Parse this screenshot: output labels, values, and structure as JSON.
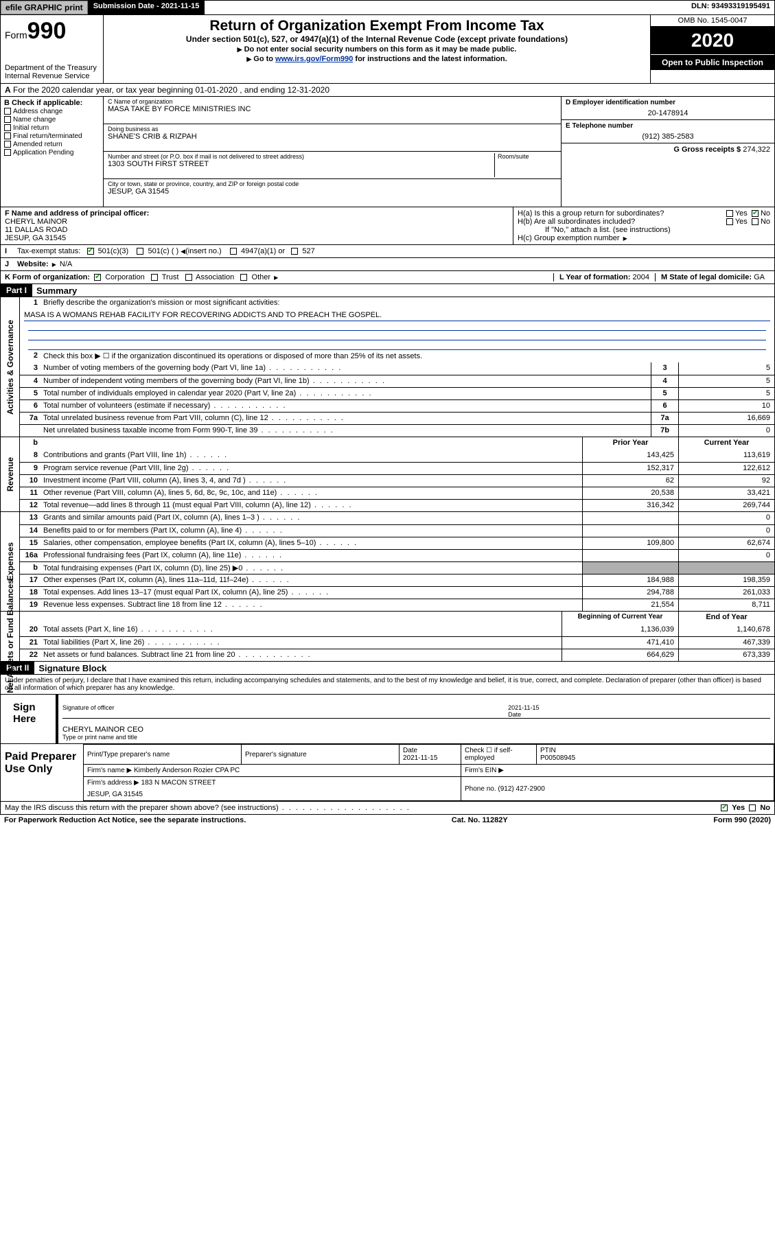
{
  "topbar": {
    "efile": "efile GRAPHIC print",
    "sub_lbl": "Submission Date - 2021-11-15",
    "dln": "DLN: 93493319195491"
  },
  "header": {
    "form_word": "Form",
    "form_no": "990",
    "dept": "Department of the Treasury",
    "irs": "Internal Revenue Service",
    "title": "Return of Organization Exempt From Income Tax",
    "subtitle": "Under section 501(c), 527, or 4947(a)(1) of the Internal Revenue Code (except private foundations)",
    "instr1": "Do not enter social security numbers on this form as it may be made public.",
    "instr2_a": "Go to ",
    "instr2_link": "www.irs.gov/Form990",
    "instr2_b": " for instructions and the latest information.",
    "omb": "OMB No. 1545-0047",
    "year": "2020",
    "open": "Open to Public Inspection"
  },
  "rowA": "For the 2020 calendar year, or tax year beginning 01-01-2020    , and ending 12-31-2020",
  "B": {
    "hdr": "B Check if applicable:",
    "opts": [
      "Address change",
      "Name change",
      "Initial return",
      "Final return/terminated",
      "Amended return",
      "Application Pending"
    ]
  },
  "C": {
    "name_lbl": "C Name of organization",
    "name": "MASA TAKE BY FORCE MINISTRIES INC",
    "dba_lbl": "Doing business as",
    "dba": "SHANE'S CRIB & RIZPAH",
    "addr_lbl": "Number and street (or P.O. box if mail is not delivered to street address)",
    "room_lbl": "Room/suite",
    "addr": "1303 SOUTH FIRST STREET",
    "city_lbl": "City or town, state or province, country, and ZIP or foreign postal code",
    "city": "JESUP, GA  31545"
  },
  "D": {
    "lbl": "D Employer identification number",
    "val": "20-1478914"
  },
  "E": {
    "lbl": "E Telephone number",
    "val": "(912) 385-2583"
  },
  "G": {
    "lbl": "G Gross receipts $",
    "val": "274,322"
  },
  "F": {
    "lbl": "F  Name and address of principal officer:",
    "name": "CHERYL MAINOR",
    "addr1": "11 DALLAS ROAD",
    "addr2": "JESUP, GA  31545"
  },
  "H": {
    "a": "H(a)  Is this a group return for subordinates?",
    "b": "H(b)  Are all subordinates included?",
    "b2": "If \"No,\" attach a list. (see instructions)",
    "c": "H(c)  Group exemption number",
    "yes": "Yes",
    "no": "No"
  },
  "I": {
    "lbl": "Tax-exempt status:",
    "o1": "501(c)(3)",
    "o2": "501(c) (  )",
    "o2b": "(insert no.)",
    "o3": "4947(a)(1) or",
    "o4": "527"
  },
  "J": {
    "lbl": "Website:",
    "val": "N/A"
  },
  "K": {
    "lbl": "K Form of organization:",
    "o1": "Corporation",
    "o2": "Trust",
    "o3": "Association",
    "o4": "Other"
  },
  "L": {
    "lbl": "L Year of formation:",
    "val": "2004"
  },
  "M": {
    "lbl": "M State of legal domicile:",
    "val": "GA"
  },
  "part1": {
    "hdr": "Part I",
    "title": "Summary"
  },
  "gov": {
    "label": "Activities & Governance",
    "q1": "Briefly describe the organization's mission or most significant activities:",
    "q1v": "MASA IS A WOMANS REHAB FACILITY FOR RECOVERING ADDICTS AND TO PREACH THE GOSPEL.",
    "q2": "Check this box ▶ ☐  if the organization discontinued its operations or disposed of more than 25% of its net assets.",
    "rows": [
      {
        "n": "3",
        "d": "Number of voting members of the governing body (Part VI, line 1a)",
        "ref": "3",
        "v": "5"
      },
      {
        "n": "4",
        "d": "Number of independent voting members of the governing body (Part VI, line 1b)",
        "ref": "4",
        "v": "5"
      },
      {
        "n": "5",
        "d": "Total number of individuals employed in calendar year 2020 (Part V, line 2a)",
        "ref": "5",
        "v": "5"
      },
      {
        "n": "6",
        "d": "Total number of volunteers (estimate if necessary)",
        "ref": "6",
        "v": "10"
      },
      {
        "n": "7a",
        "d": "Total unrelated business revenue from Part VIII, column (C), line 12",
        "ref": "7a",
        "v": "16,669"
      },
      {
        "n": "",
        "d": "Net unrelated business taxable income from Form 990-T, line 39",
        "ref": "7b",
        "v": "0"
      }
    ]
  },
  "rev": {
    "label": "Revenue",
    "hdr_b": "b",
    "hdr_py": "Prior Year",
    "hdr_cy": "Current Year",
    "rows": [
      {
        "n": "8",
        "d": "Contributions and grants (Part VIII, line 1h)",
        "py": "143,425",
        "cy": "113,619"
      },
      {
        "n": "9",
        "d": "Program service revenue (Part VIII, line 2g)",
        "py": "152,317",
        "cy": "122,612"
      },
      {
        "n": "10",
        "d": "Investment income (Part VIII, column (A), lines 3, 4, and 7d )",
        "py": "62",
        "cy": "92"
      },
      {
        "n": "11",
        "d": "Other revenue (Part VIII, column (A), lines 5, 6d, 8c, 9c, 10c, and 11e)",
        "py": "20,538",
        "cy": "33,421"
      },
      {
        "n": "12",
        "d": "Total revenue—add lines 8 through 11 (must equal Part VIII, column (A), line 12)",
        "py": "316,342",
        "cy": "269,744"
      }
    ]
  },
  "exp": {
    "label": "Expenses",
    "rows": [
      {
        "n": "13",
        "d": "Grants and similar amounts paid (Part IX, column (A), lines 1–3 )",
        "py": "",
        "cy": "0"
      },
      {
        "n": "14",
        "d": "Benefits paid to or for members (Part IX, column (A), line 4)",
        "py": "",
        "cy": "0"
      },
      {
        "n": "15",
        "d": "Salaries, other compensation, employee benefits (Part IX, column (A), lines 5–10)",
        "py": "109,800",
        "cy": "62,674"
      },
      {
        "n": "16a",
        "d": "Professional fundraising fees (Part IX, column (A), line 11e)",
        "py": "",
        "cy": "0"
      },
      {
        "n": "b",
        "d": "Total fundraising expenses (Part IX, column (D), line 25) ▶0",
        "py": "shade",
        "cy": "shade"
      },
      {
        "n": "17",
        "d": "Other expenses (Part IX, column (A), lines 11a–11d, 11f–24e)",
        "py": "184,988",
        "cy": "198,359"
      },
      {
        "n": "18",
        "d": "Total expenses. Add lines 13–17 (must equal Part IX, column (A), line 25)",
        "py": "294,788",
        "cy": "261,033"
      },
      {
        "n": "19",
        "d": "Revenue less expenses. Subtract line 18 from line 12",
        "py": "21,554",
        "cy": "8,711"
      }
    ]
  },
  "net": {
    "label": "Net Assets or Fund Balances",
    "hdr_py": "Beginning of Current Year",
    "hdr_cy": "End of Year",
    "rows": [
      {
        "n": "20",
        "d": "Total assets (Part X, line 16)",
        "py": "1,136,039",
        "cy": "1,140,678"
      },
      {
        "n": "21",
        "d": "Total liabilities (Part X, line 26)",
        "py": "471,410",
        "cy": "467,339"
      },
      {
        "n": "22",
        "d": "Net assets or fund balances. Subtract line 21 from line 20",
        "py": "664,629",
        "cy": "673,339"
      }
    ]
  },
  "part2": {
    "hdr": "Part II",
    "title": "Signature Block"
  },
  "penalty": "Under penalties of perjury, I declare that I have examined this return, including accompanying schedules and statements, and to the best of my knowledge and belief, it is true, correct, and complete. Declaration of preparer (other than officer) is based on all information of which preparer has any knowledge.",
  "sign": {
    "lbl": "Sign Here",
    "sig_lbl": "Signature of officer",
    "date_lbl": "Date",
    "date": "2021-11-15",
    "name": "CHERYL MAINOR  CEO",
    "name_lbl": "Type or print name and title"
  },
  "prep": {
    "lbl": "Paid Preparer Use Only",
    "h1": "Print/Type preparer's name",
    "h2": "Preparer's signature",
    "h3": "Date",
    "h3v": "2021-11-15",
    "h4": "Check ☐ if self-employed",
    "h5": "PTIN",
    "h5v": "P00508945",
    "firm_lbl": "Firm's name    ▶",
    "firm": "Kimberly Anderson Rozier CPA PC",
    "ein_lbl": "Firm's EIN ▶",
    "addr_lbl": "Firm's address ▶",
    "addr": "183 N MACON STREET",
    "addr2": "JESUP, GA  31545",
    "phone_lbl": "Phone no.",
    "phone": "(912) 427-2900"
  },
  "discuss": {
    "q": "May the IRS discuss this return with the preparer shown above? (see instructions)",
    "yes": "Yes",
    "no": "No"
  },
  "footer": {
    "l": "For Paperwork Reduction Act Notice, see the separate instructions.",
    "c": "Cat. No. 11282Y",
    "r": "Form 990 (2020)"
  }
}
